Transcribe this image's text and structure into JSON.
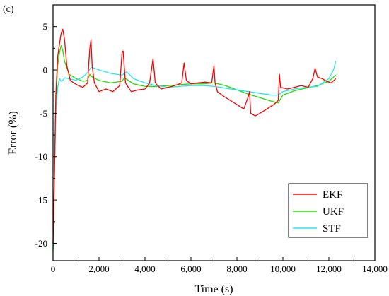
{
  "panel_label": "(c)",
  "colors": {
    "EKF": "#ff0000",
    "UKF": "#22dd00",
    "STF": "#22e6f0",
    "axis": "#000000"
  },
  "chart_data": {
    "type": "line",
    "title": "",
    "xlabel": "Time (s)",
    "ylabel": "Error (%)",
    "xlim": [
      0,
      14000
    ],
    "ylim": [
      -22,
      7.5
    ],
    "xticks": [
      0,
      2000,
      4000,
      6000,
      8000,
      10000,
      12000,
      14000
    ],
    "xtick_labels": [
      "0",
      "2,000",
      "4,000",
      "6,000",
      "8,000",
      "10,000",
      "12,000",
      "14,000"
    ],
    "yticks": [
      -20,
      -15,
      -10,
      -5,
      0,
      5
    ],
    "ytick_labels": [
      "-20",
      "-15",
      "-10",
      "-5",
      "0",
      "5"
    ],
    "grid": false,
    "legend_position": "bottom-right",
    "legend": [
      "EKF",
      "UKF",
      "STF"
    ],
    "series": [
      {
        "name": "EKF",
        "x": [
          0,
          60,
          120,
          200,
          280,
          350,
          420,
          500,
          600,
          750,
          900,
          1100,
          1300,
          1500,
          1600,
          1650,
          1700,
          1800,
          2000,
          2300,
          2600,
          2900,
          3000,
          3050,
          3150,
          3400,
          3700,
          4000,
          4200,
          4350,
          4450,
          4700,
          5000,
          5300,
          5600,
          5700,
          5800,
          6000,
          6300,
          6600,
          6900,
          7000,
          7050,
          7150,
          7400,
          7700,
          8000,
          8300,
          8500,
          8550,
          8600,
          8800,
          9000,
          9300,
          9600,
          9800,
          9850,
          9900,
          10200,
          10500,
          10800,
          11100,
          11300,
          11400,
          11500,
          11700,
          11900,
          12100,
          12300
        ],
        "values": [
          -20,
          -12,
          -3,
          1.5,
          3,
          4.2,
          4.7,
          3.5,
          0.5,
          -1.2,
          -1.5,
          -1.8,
          -2,
          -1.5,
          2.5,
          3.5,
          0.5,
          -1.5,
          -2.5,
          -2.2,
          -2.5,
          -1.8,
          2,
          2.2,
          -1.5,
          -2.5,
          -2.3,
          -2.2,
          -1.5,
          1.3,
          -1.5,
          -2.2,
          -2,
          -1.8,
          -1.5,
          0.8,
          -1.2,
          -1.6,
          -1.5,
          -1.4,
          -1.5,
          0.5,
          -1.5,
          -2.5,
          -3,
          -3.5,
          -4,
          -4.5,
          -3,
          -2.5,
          -5,
          -5.3,
          -5,
          -4.5,
          -4,
          -3.5,
          -0.5,
          -2,
          -2.2,
          -2,
          -1.8,
          -2,
          -1,
          0.2,
          -0.8,
          -1,
          -1.3,
          -1.5,
          -1
        ]
      },
      {
        "name": "UKF",
        "x": [
          0,
          60,
          120,
          200,
          280,
          350,
          420,
          500,
          700,
          1000,
          1300,
          1500,
          1600,
          1700,
          2000,
          2500,
          3000,
          3100,
          3500,
          4000,
          4500,
          5000,
          5500,
          6000,
          6500,
          7000,
          7500,
          8000,
          8500,
          9000,
          9500,
          9800,
          10000,
          10500,
          11000,
          11500,
          12000,
          12300
        ],
        "values": [
          -21,
          -12,
          -4,
          0.5,
          2,
          2.8,
          2.3,
          1,
          -0.5,
          -1,
          -1.3,
          -1.2,
          -0.5,
          -0.8,
          -1.2,
          -1.5,
          -1.3,
          -0.9,
          -1.6,
          -1.9,
          -1.9,
          -1.8,
          -1.7,
          -1.6,
          -1.6,
          -1.5,
          -1.8,
          -2.3,
          -2.8,
          -3.2,
          -3.6,
          -3.8,
          -2.9,
          -2.4,
          -2.1,
          -1.8,
          -1.3,
          -0.6
        ]
      },
      {
        "name": "STF",
        "x": [
          0,
          60,
          120,
          200,
          280,
          350,
          420,
          500,
          700,
          1000,
          1300,
          1500,
          1650,
          1800,
          2000,
          2500,
          3000,
          3200,
          3500,
          4000,
          4500,
          5000,
          5500,
          6000,
          6500,
          7000,
          7500,
          8000,
          8500,
          9000,
          9500,
          9800,
          10000,
          10500,
          11000,
          11500,
          12000,
          12200,
          12300
        ],
        "values": [
          -20.5,
          -12,
          -5,
          -2,
          -1,
          -1.3,
          -1.2,
          -0.9,
          -1,
          -1.2,
          -0.8,
          -0.3,
          0.3,
          0.2,
          0,
          -0.4,
          -0.6,
          -0.2,
          -1,
          -1.5,
          -1.8,
          -2,
          -1.9,
          -1.8,
          -1.8,
          -1.9,
          -2.1,
          -2.3,
          -2.5,
          -2.7,
          -2.9,
          -2.9,
          -2.5,
          -2.2,
          -2,
          -1.9,
          -1,
          0,
          1
        ]
      }
    ]
  }
}
